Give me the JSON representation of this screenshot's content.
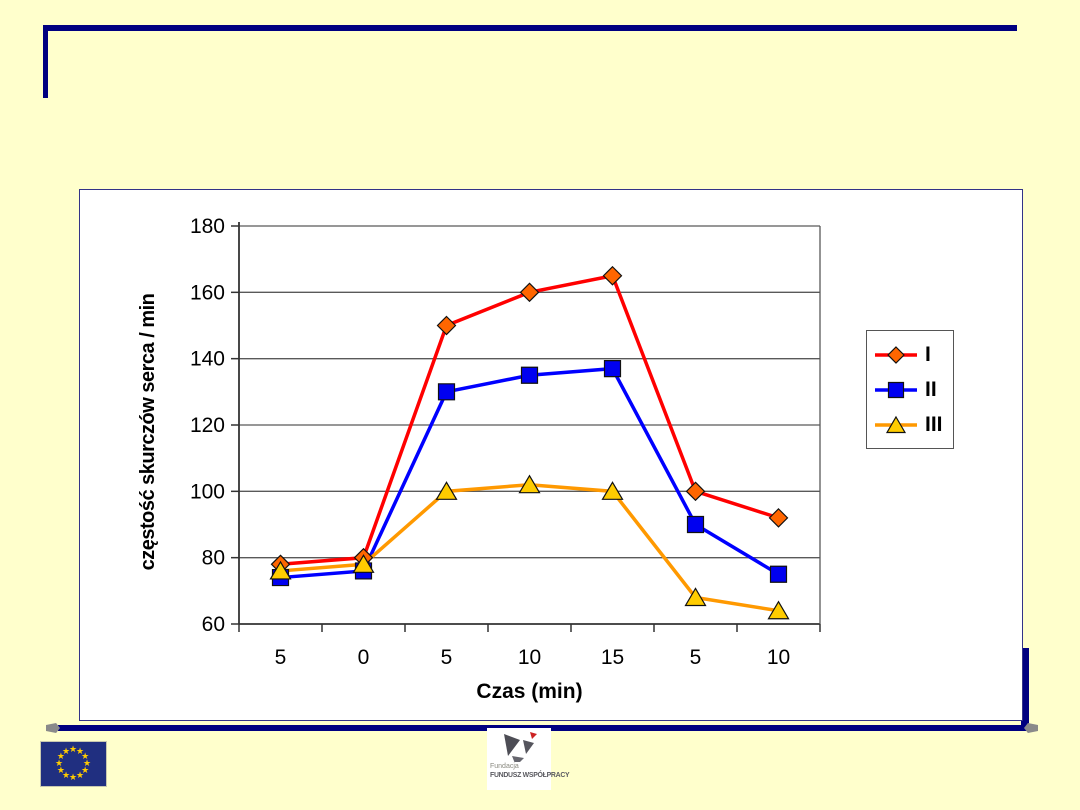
{
  "slide": {
    "background_color": "#FFFFCC",
    "accent_color": "#000080"
  },
  "chart_data": {
    "type": "line",
    "title": "",
    "xlabel": "Czas (min)",
    "ylabel": "częstość skurczów serca / min",
    "categories": [
      "5",
      "0",
      "5",
      "10",
      "15",
      "5",
      "10"
    ],
    "ylim": [
      60,
      180
    ],
    "yticks": [
      60,
      80,
      100,
      120,
      140,
      160,
      180
    ],
    "grid": true,
    "legend_position": "right",
    "series": [
      {
        "name": "I",
        "line_color": "#FF0000",
        "marker": "diamond",
        "marker_color": "#FF6600",
        "values": [
          78,
          80,
          150,
          160,
          165,
          100,
          92
        ]
      },
      {
        "name": "II",
        "line_color": "#0000FF",
        "marker": "square",
        "marker_color": "#0000F0",
        "values": [
          74,
          76,
          130,
          135,
          137,
          90,
          75
        ]
      },
      {
        "name": "III",
        "line_color": "#FF9900",
        "marker": "triangle",
        "marker_color": "#FFCC00",
        "values": [
          76,
          78,
          100,
          102,
          100,
          68,
          64
        ]
      }
    ]
  },
  "footer": {
    "eu_flag": {
      "stars": 12,
      "star_glyph": "★",
      "flag_color": "#202F80",
      "star_color": "#FFCC00"
    },
    "fwp_logo": {
      "line1": "Fundacja",
      "line2": "FUNDUSZ WSPÓŁPRACY"
    }
  }
}
